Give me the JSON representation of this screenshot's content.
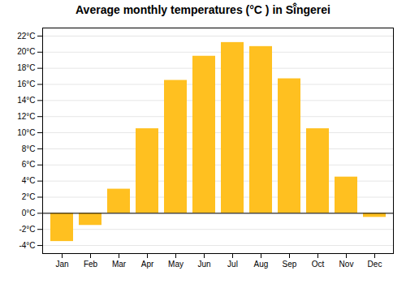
{
  "chart_data": {
    "type": "bar",
    "title": "Average monthly temperatures (°C ) in Sî̂ngerei",
    "categories": [
      "Jan",
      "Feb",
      "Mar",
      "Apr",
      "May",
      "Jun",
      "Jul",
      "Aug",
      "Sep",
      "Oct",
      "Nov",
      "Dec"
    ],
    "values": [
      -3.5,
      -1.5,
      3.0,
      10.5,
      16.5,
      19.5,
      21.2,
      20.7,
      16.7,
      10.5,
      4.5,
      -0.5
    ],
    "color": "#FFC020",
    "ylim": [
      -5,
      23
    ],
    "yticks": [
      {
        "value": -4,
        "label": "-4°C"
      },
      {
        "value": -2,
        "label": "-2°C"
      },
      {
        "value": 0,
        "label": "0°C"
      },
      {
        "value": 2,
        "label": "2°C"
      },
      {
        "value": 4,
        "label": "4°C"
      },
      {
        "value": 6,
        "label": "6°C"
      },
      {
        "value": 8,
        "label": "8°C"
      },
      {
        "value": 10,
        "label": "10°C"
      },
      {
        "value": 12,
        "label": "12°C"
      },
      {
        "value": 14,
        "label": "14°C"
      },
      {
        "value": 16,
        "label": "16°C"
      },
      {
        "value": 18,
        "label": "18°C"
      },
      {
        "value": 20,
        "label": "20°C"
      },
      {
        "value": 22,
        "label": "22°C"
      }
    ],
    "grid": true
  }
}
